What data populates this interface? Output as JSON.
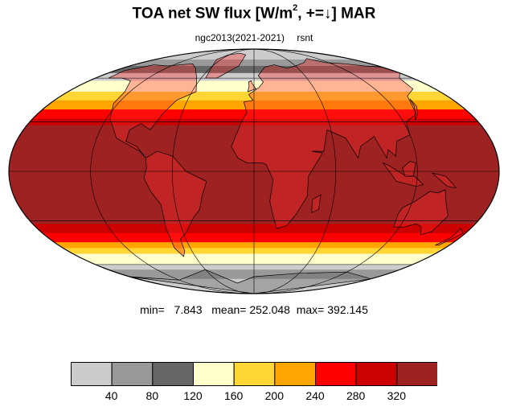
{
  "title": {
    "main": "TOA net SW flux [W/m",
    "sup": "2",
    "rest": ", +=↓]  MAR"
  },
  "subtitle": {
    "case": "ngc2013(2021-2021)",
    "variable": "rsnt"
  },
  "stats": {
    "min_label": "min=",
    "min": "7.843",
    "mean_label": "mean=",
    "mean": "252.048",
    "max_label": "max=",
    "max": "392.145"
  },
  "colorbar": {
    "levels": [
      40,
      80,
      120,
      160,
      200,
      240,
      280,
      320
    ],
    "tick_labels": [
      "40",
      "80",
      "120",
      "160",
      "200",
      "240",
      "280",
      "320"
    ],
    "colors": [
      "#cccccc",
      "#999999",
      "#666666",
      "#ffffcc",
      "#ffd633",
      "#ffa500",
      "#ff0000",
      "#cc0000",
      "#9e2222"
    ]
  },
  "map": {
    "projection": "mollweide",
    "band_latitudes": [
      90,
      76,
      70,
      64,
      58,
      50,
      44,
      38,
      32,
      28,
      -32,
      -38,
      -44,
      -48,
      -52,
      -56,
      -60,
      -64,
      -72,
      -90
    ],
    "band_colors": [
      "#cccccc",
      "#999999",
      "#666666",
      "#cccccc",
      "#ffffcc",
      "#ffd633",
      "#ffa500",
      "#ff0000",
      "#cc0000",
      "#9e2222",
      "#cc0000",
      "#ff0000",
      "#ffa500",
      "#ffd633",
      "#ffffcc",
      "#ffffcc",
      "#cccccc",
      "#999999",
      "#cccccc"
    ],
    "gridline_color": "#000000"
  }
}
